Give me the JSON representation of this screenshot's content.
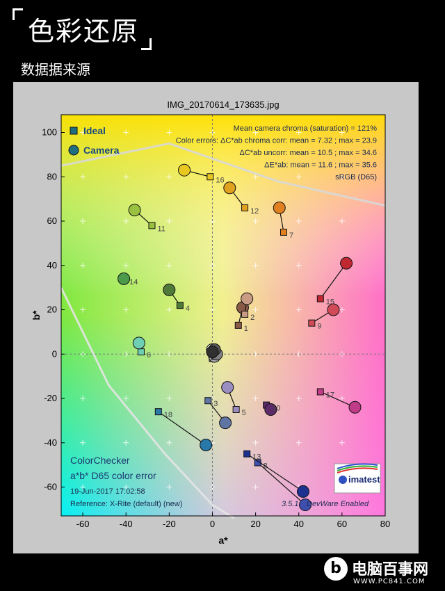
{
  "header": {
    "title": "色彩还原",
    "subtitle": "数据据来源"
  },
  "watermark": {
    "logo_letter": "b",
    "name": "电脑百事网",
    "url": "WWW.PC841.COM"
  },
  "chart_data": {
    "type": "scatter",
    "title": "IMG_20170614_173635.jpg",
    "xlabel": "a*",
    "ylabel": "b*",
    "xlim": [
      -70,
      80
    ],
    "ylim": [
      -73,
      108
    ],
    "x_ticks": [
      -60,
      -40,
      -20,
      0,
      20,
      40,
      60,
      80
    ],
    "y_ticks": [
      -60,
      -40,
      -20,
      0,
      20,
      40,
      60,
      80,
      100
    ],
    "legend": {
      "position": "top-left",
      "entries": [
        {
          "name": "Ideal",
          "marker": "square",
          "color": "#1f6f80"
        },
        {
          "name": "Camera",
          "marker": "circle",
          "color": "#1f6f80"
        }
      ]
    },
    "stats": [
      "Mean camera chroma (saturation) = 121%",
      "Color errors: ΔC*ab chroma corr:  mean = 7.32 ;  max = 23.9",
      "ΔC*ab uncorr:  mean = 10.5 ;  max = 34.6",
      "ΔE*ab:  mean = 11.6 ;  max = 35.6",
      "sRGB (D65)"
    ],
    "info": {
      "line1": "ColorChecker",
      "line2": "a*b* D65 color error",
      "date": "19-Jun-2017 17:02:58",
      "reference": "Reference: X-Rite (default) (new)",
      "version": "3.5.1",
      "edition": "DevWare Enabled",
      "logo": "imatest"
    },
    "gamut_boundary": {
      "upper": [
        [
          -70,
          85
        ],
        [
          -20,
          95
        ],
        [
          30,
          78
        ],
        [
          80,
          67
        ]
      ],
      "lower": [
        [
          -70,
          30
        ],
        [
          -48,
          -14
        ],
        [
          -22,
          -45
        ],
        [
          0,
          -68
        ],
        [
          10,
          -74
        ]
      ]
    },
    "points": [
      {
        "id": "1",
        "ideal": [
          12,
          13
        ],
        "camera": [
          14,
          21
        ],
        "color": "#8a5a48"
      },
      {
        "id": "2",
        "ideal": [
          15,
          18
        ],
        "camera": [
          16,
          25
        ],
        "color": "#c99a84"
      },
      {
        "id": "3",
        "ideal": [
          -2,
          -21
        ],
        "camera": [
          6,
          -31
        ],
        "color": "#5f75a3"
      },
      {
        "id": "4",
        "ideal": [
          -15,
          22
        ],
        "camera": [
          -20,
          29
        ],
        "color": "#4f7a3a"
      },
      {
        "id": "5",
        "ideal": [
          11,
          -25
        ],
        "camera": [
          7,
          -15
        ],
        "color": "#9a8ec0"
      },
      {
        "id": "6",
        "ideal": [
          -33,
          1
        ],
        "camera": [
          -34,
          5
        ],
        "color": "#6fcfb4"
      },
      {
        "id": "7",
        "ideal": [
          33,
          55
        ],
        "camera": [
          31,
          66
        ],
        "color": "#e08020"
      },
      {
        "id": "8",
        "ideal": [
          21,
          -49
        ],
        "camera": [
          43,
          -68
        ],
        "color": "#3f4fb0"
      },
      {
        "id": "9",
        "ideal": [
          46,
          14
        ],
        "camera": [
          56,
          20
        ],
        "color": "#d04a58"
      },
      {
        "id": "10",
        "ideal": [
          25,
          -23
        ],
        "camera": [
          27,
          -25
        ],
        "color": "#5e2a6a"
      },
      {
        "id": "11",
        "ideal": [
          -28,
          58
        ],
        "camera": [
          -36,
          65
        ],
        "color": "#9ac040"
      },
      {
        "id": "12",
        "ideal": [
          15,
          66
        ],
        "camera": [
          8,
          75
        ],
        "color": "#e0a020"
      },
      {
        "id": "13",
        "ideal": [
          16,
          -45
        ],
        "camera": [
          42,
          -62
        ],
        "color": "#1d3290"
      },
      {
        "id": "14",
        "ideal": [
          -41,
          34
        ],
        "camera": [
          -41,
          34
        ],
        "color": "#4a9a4a"
      },
      {
        "id": "15",
        "ideal": [
          50,
          25
        ],
        "camera": [
          62,
          41
        ],
        "color": "#c02832"
      },
      {
        "id": "16",
        "ideal": [
          -1,
          80
        ],
        "camera": [
          -13,
          83
        ],
        "color": "#e8c820"
      },
      {
        "id": "17",
        "ideal": [
          50,
          -17
        ],
        "camera": [
          66,
          -24
        ],
        "color": "#c03c88"
      },
      {
        "id": "18",
        "ideal": [
          -25,
          -26
        ],
        "camera": [
          -3,
          -41
        ],
        "color": "#2878a8"
      },
      {
        "id": "19",
        "ideal": [
          0,
          -1
        ],
        "camera": [
          0,
          2
        ],
        "color": "#f4f4f4",
        "label": false
      },
      {
        "id": "20",
        "ideal": [
          1,
          0
        ],
        "camera": [
          1,
          1
        ],
        "color": "#d0d0d0",
        "label": false
      },
      {
        "id": "21",
        "ideal": [
          0,
          -2
        ],
        "camera": [
          1,
          -1
        ],
        "color": "#a8a8a8",
        "label": false
      },
      {
        "id": "22",
        "ideal": [
          1,
          -1
        ],
        "camera": [
          2,
          0
        ],
        "color": "#808080",
        "label": false
      },
      {
        "id": "23",
        "ideal": [
          0,
          0
        ],
        "camera": [
          1,
          2
        ],
        "color": "#585858",
        "label": false
      },
      {
        "id": "24",
        "ideal": [
          0,
          0
        ],
        "camera": [
          0,
          1
        ],
        "color": "#303030",
        "label": false
      }
    ]
  }
}
